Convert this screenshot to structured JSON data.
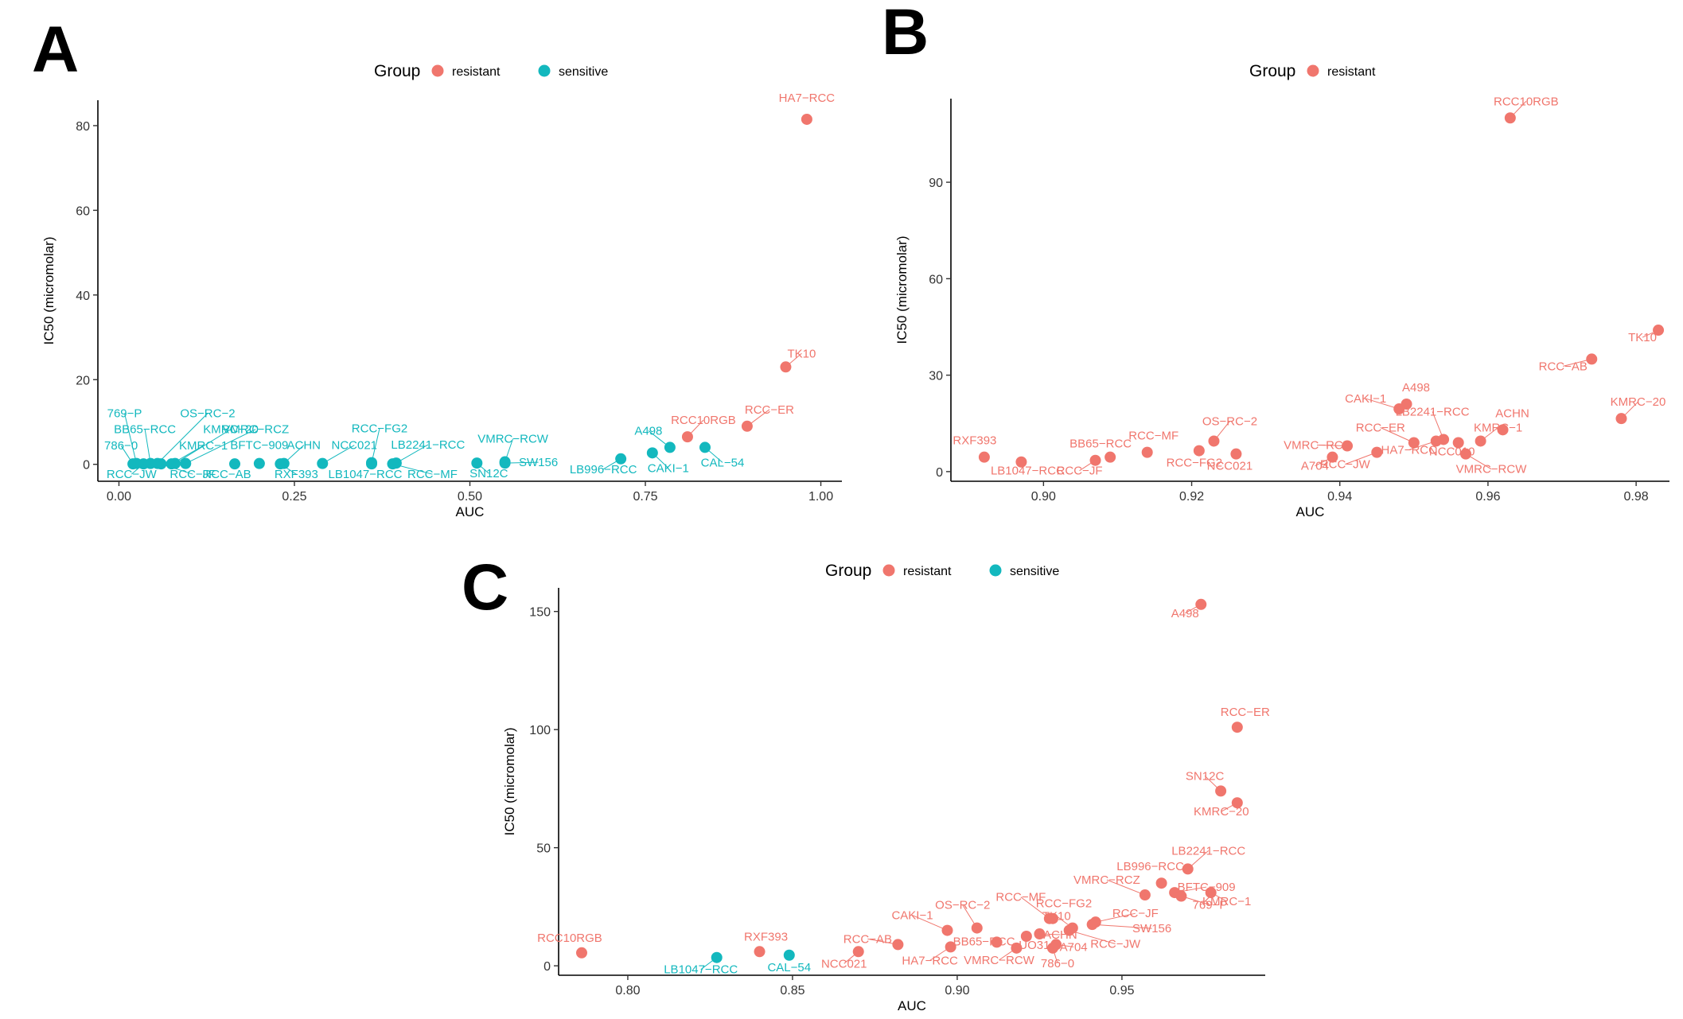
{
  "panels": [
    {
      "letter": "A"
    },
    {
      "letter": "B"
    },
    {
      "letter": "C"
    }
  ],
  "colors": {
    "resistant": "#F0766D",
    "sensitive": "#13B8BE",
    "axis": "#000000",
    "tick_text": "#333333"
  },
  "chart_data": [
    {
      "panel": "A",
      "type": "scatter",
      "xlabel": "AUC",
      "ylabel": "IC50 (micromolar)",
      "xlim": [
        -0.03,
        1.03
      ],
      "ylim": [
        -4.0,
        86.0
      ],
      "xticks": [
        0.0,
        0.25,
        0.5,
        0.75,
        1.0
      ],
      "xtick_labels": [
        "0.00",
        "0.25",
        "0.50",
        "0.75",
        "1.00"
      ],
      "yticks": [
        0,
        20,
        40,
        60,
        80
      ],
      "ytick_labels": [
        "0",
        "20",
        "40",
        "60",
        "80"
      ],
      "legend": {
        "title": "Group",
        "position": "top",
        "entries": [
          "resistant",
          "sensitive"
        ]
      },
      "grid": false,
      "points": [
        {
          "label": "HA7−RCC",
          "x": 0.98,
          "y": 81.5,
          "group": "resistant"
        },
        {
          "label": "TK10",
          "x": 0.95,
          "y": 23.0,
          "group": "resistant"
        },
        {
          "label": "RCC−ER",
          "x": 0.895,
          "y": 9.0,
          "group": "resistant"
        },
        {
          "label": "RCC10RGB",
          "x": 0.81,
          "y": 6.5,
          "group": "resistant"
        },
        {
          "label": "CAL−54",
          "x": 0.835,
          "y": 4.0,
          "group": "sensitive"
        },
        {
          "label": "A498",
          "x": 0.785,
          "y": 4.0,
          "group": "sensitive"
        },
        {
          "label": "CAKI−1",
          "x": 0.76,
          "y": 2.7,
          "group": "sensitive"
        },
        {
          "label": "LB996−RCC",
          "x": 0.715,
          "y": 1.3,
          "group": "sensitive"
        },
        {
          "label": "VMRC−RCW",
          "x": 0.55,
          "y": 0.6,
          "group": "sensitive"
        },
        {
          "label": "SW156",
          "x": 0.55,
          "y": 0.3,
          "group": "sensitive"
        },
        {
          "label": "SN12C",
          "x": 0.51,
          "y": 0.3,
          "group": "sensitive"
        },
        {
          "label": "LB2241−RCC",
          "x": 0.395,
          "y": 0.3,
          "group": "sensitive"
        },
        {
          "label": "RCC−MF",
          "x": 0.39,
          "y": 0.1,
          "group": "sensitive"
        },
        {
          "label": "RCC−FG2",
          "x": 0.36,
          "y": 0.4,
          "group": "sensitive"
        },
        {
          "label": "LB1047−RCC",
          "x": 0.36,
          "y": 0.1,
          "group": "sensitive"
        },
        {
          "label": "NCC021",
          "x": 0.29,
          "y": 0.2,
          "group": "sensitive"
        },
        {
          "label": "ACHN",
          "x": 0.235,
          "y": 0.2,
          "group": "sensitive"
        },
        {
          "label": "RXF393",
          "x": 0.23,
          "y": 0.1,
          "group": "sensitive"
        },
        {
          "label": "BFTC−909",
          "x": 0.2,
          "y": 0.2,
          "group": "sensitive"
        },
        {
          "label": "RCC−AB",
          "x": 0.165,
          "y": 0.1,
          "group": "sensitive"
        },
        {
          "label": "VMRC−RCZ",
          "x": 0.095,
          "y": 0.2,
          "group": "sensitive"
        },
        {
          "label": "KMRC−20",
          "x": 0.08,
          "y": 0.2,
          "group": "sensitive"
        },
        {
          "label": "KMRC−1",
          "x": 0.075,
          "y": 0.1,
          "group": "sensitive"
        },
        {
          "label": "RCC−JF",
          "x": 0.06,
          "y": 0.1,
          "group": "sensitive"
        },
        {
          "label": "OS−RC−2",
          "x": 0.055,
          "y": 0.2,
          "group": "sensitive"
        },
        {
          "label": "BB65−RCC",
          "x": 0.045,
          "y": 0.2,
          "group": "sensitive"
        },
        {
          "label": "RCC−JW",
          "x": 0.035,
          "y": 0.1,
          "group": "sensitive"
        },
        {
          "label": "769−P",
          "x": 0.025,
          "y": 0.2,
          "group": "sensitive"
        },
        {
          "label": "786−0",
          "x": 0.02,
          "y": 0.1,
          "group": "sensitive"
        }
      ]
    },
    {
      "panel": "B",
      "type": "scatter",
      "xlabel": "AUC",
      "ylabel": "IC50 (micromolar)",
      "xlim": [
        0.8875,
        0.9845
      ],
      "ylim": [
        -3.0,
        116.0
      ],
      "xticks": [
        0.9,
        0.92,
        0.94,
        0.96,
        0.98
      ],
      "xtick_labels": [
        "0.90",
        "0.92",
        "0.94",
        "0.96",
        "0.98"
      ],
      "yticks": [
        0,
        30,
        60,
        90
      ],
      "ytick_labels": [
        "0",
        "30",
        "60",
        "90"
      ],
      "legend": {
        "title": "Group",
        "position": "top",
        "entries": [
          "resistant"
        ]
      },
      "grid": false,
      "points": [
        {
          "label": "RCC10RGB",
          "x": 0.963,
          "y": 110.0,
          "group": "resistant"
        },
        {
          "label": "TK10",
          "x": 0.983,
          "y": 44.0,
          "group": "resistant"
        },
        {
          "label": "RCC−AB",
          "x": 0.974,
          "y": 35.0,
          "group": "resistant"
        },
        {
          "label": "KMRC−20",
          "x": 0.978,
          "y": 16.5,
          "group": "resistant"
        },
        {
          "label": "A498",
          "x": 0.949,
          "y": 21.0,
          "group": "resistant"
        },
        {
          "label": "CAKI−1",
          "x": 0.948,
          "y": 19.5,
          "group": "resistant"
        },
        {
          "label": "ACHN",
          "x": 0.962,
          "y": 13.0,
          "group": "resistant"
        },
        {
          "label": "LB2241−RCC",
          "x": 0.954,
          "y": 10.0,
          "group": "resistant"
        },
        {
          "label": "KMRC−1",
          "x": 0.959,
          "y": 9.5,
          "group": "resistant"
        },
        {
          "label": "NCC010",
          "x": 0.956,
          "y": 9.0,
          "group": "resistant"
        },
        {
          "label": "RCC−ER",
          "x": 0.95,
          "y": 9.0,
          "group": "resistant"
        },
        {
          "label": "VMRC−RCW",
          "x": 0.957,
          "y": 5.5,
          "group": "resistant"
        },
        {
          "label": "HA7−RCC",
          "x": 0.953,
          "y": 9.5,
          "group": "resistant"
        },
        {
          "label": "VMRC−RCZ",
          "x": 0.941,
          "y": 8.0,
          "group": "resistant"
        },
        {
          "label": "RCC−JW",
          "x": 0.945,
          "y": 6.0,
          "group": "resistant"
        },
        {
          "label": "A704",
          "x": 0.939,
          "y": 4.5,
          "group": "resistant"
        },
        {
          "label": "OS−RC−2",
          "x": 0.923,
          "y": 9.5,
          "group": "resistant"
        },
        {
          "label": "NCC021",
          "x": 0.926,
          "y": 5.5,
          "group": "resistant"
        },
        {
          "label": "RCC−FG2",
          "x": 0.921,
          "y": 6.5,
          "group": "resistant"
        },
        {
          "label": "RCC−MF",
          "x": 0.914,
          "y": 6.0,
          "group": "resistant"
        },
        {
          "label": "BB65−RCC",
          "x": 0.909,
          "y": 4.5,
          "group": "resistant"
        },
        {
          "label": "RCC−JF",
          "x": 0.907,
          "y": 3.5,
          "group": "resistant"
        },
        {
          "label": "RXF393",
          "x": 0.892,
          "y": 4.5,
          "group": "resistant"
        },
        {
          "label": "LB1047−RCC",
          "x": 0.897,
          "y": 3.0,
          "group": "resistant"
        }
      ]
    },
    {
      "panel": "C",
      "type": "scatter",
      "xlabel": "AUC",
      "ylabel": "IC50 (micromolar)",
      "xlim": [
        0.779,
        0.9935
      ],
      "ylim": [
        -4.0,
        160.0
      ],
      "xticks": [
        0.8,
        0.85,
        0.9,
        0.95
      ],
      "xtick_labels": [
        "0.80",
        "0.85",
        "0.90",
        "0.95"
      ],
      "yticks": [
        0,
        50,
        100,
        150
      ],
      "ytick_labels": [
        "0",
        "50",
        "100",
        "150"
      ],
      "legend": {
        "title": "Group",
        "position": "top",
        "entries": [
          "resistant",
          "sensitive"
        ]
      },
      "grid": false,
      "points": [
        {
          "label": "A498",
          "x": 0.974,
          "y": 153.0,
          "group": "resistant"
        },
        {
          "label": "RCC−ER",
          "x": 0.985,
          "y": 101.0,
          "group": "resistant"
        },
        {
          "label": "SN12C",
          "x": 0.98,
          "y": 74.0,
          "group": "resistant"
        },
        {
          "label": "KMRC−20",
          "x": 0.985,
          "y": 69.0,
          "group": "resistant"
        },
        {
          "label": "LB2241−RCC",
          "x": 0.97,
          "y": 41.0,
          "group": "resistant"
        },
        {
          "label": "LB996−RCC",
          "x": 0.962,
          "y": 35.0,
          "group": "resistant"
        },
        {
          "label": "BFTC−909",
          "x": 0.966,
          "y": 31.0,
          "group": "resistant"
        },
        {
          "label": "KMRC−1",
          "x": 0.977,
          "y": 31.0,
          "group": "resistant"
        },
        {
          "label": "VMRC−RCZ",
          "x": 0.957,
          "y": 30.0,
          "group": "resistant"
        },
        {
          "label": "769−P",
          "x": 0.968,
          "y": 29.5,
          "group": "resistant"
        },
        {
          "label": "RCC−MF",
          "x": 0.928,
          "y": 20.0,
          "group": "resistant"
        },
        {
          "label": "RCC−FG2",
          "x": 0.929,
          "y": 20.0,
          "group": "resistant"
        },
        {
          "label": "RCC−JF",
          "x": 0.942,
          "y": 18.5,
          "group": "resistant"
        },
        {
          "label": "SW156",
          "x": 0.941,
          "y": 17.5,
          "group": "resistant"
        },
        {
          "label": "OS−RC−2",
          "x": 0.906,
          "y": 16.0,
          "group": "resistant"
        },
        {
          "label": "TK10",
          "x": 0.935,
          "y": 16.0,
          "group": "resistant"
        },
        {
          "label": "CAKI−1",
          "x": 0.897,
          "y": 15.0,
          "group": "resistant"
        },
        {
          "label": "ACHN",
          "x": 0.925,
          "y": 13.5,
          "group": "resistant"
        },
        {
          "label": "RCC−JW",
          "x": 0.934,
          "y": 15.0,
          "group": "resistant"
        },
        {
          "label": "UO31",
          "x": 0.921,
          "y": 12.5,
          "group": "resistant"
        },
        {
          "label": "BB65−RCC",
          "x": 0.912,
          "y": 10.0,
          "group": "resistant"
        },
        {
          "label": "RCC−AB",
          "x": 0.882,
          "y": 9.0,
          "group": "resistant"
        },
        {
          "label": "HA7−RCC",
          "x": 0.898,
          "y": 8.0,
          "group": "resistant"
        },
        {
          "label": "VMRC−RCW",
          "x": 0.918,
          "y": 7.5,
          "group": "resistant"
        },
        {
          "label": "A704",
          "x": 0.93,
          "y": 9.0,
          "group": "resistant"
        },
        {
          "label": "786−0",
          "x": 0.929,
          "y": 7.5,
          "group": "resistant"
        },
        {
          "label": "NCC021",
          "x": 0.87,
          "y": 6.0,
          "group": "resistant"
        },
        {
          "label": "RXF393",
          "x": 0.84,
          "y": 6.0,
          "group": "resistant"
        },
        {
          "label": "RCC10RGB",
          "x": 0.786,
          "y": 5.5,
          "group": "resistant"
        },
        {
          "label": "LB1047−RCC",
          "x": 0.827,
          "y": 3.5,
          "group": "sensitive"
        },
        {
          "label": "CAL−54",
          "x": 0.849,
          "y": 4.5,
          "group": "sensitive"
        }
      ]
    }
  ]
}
